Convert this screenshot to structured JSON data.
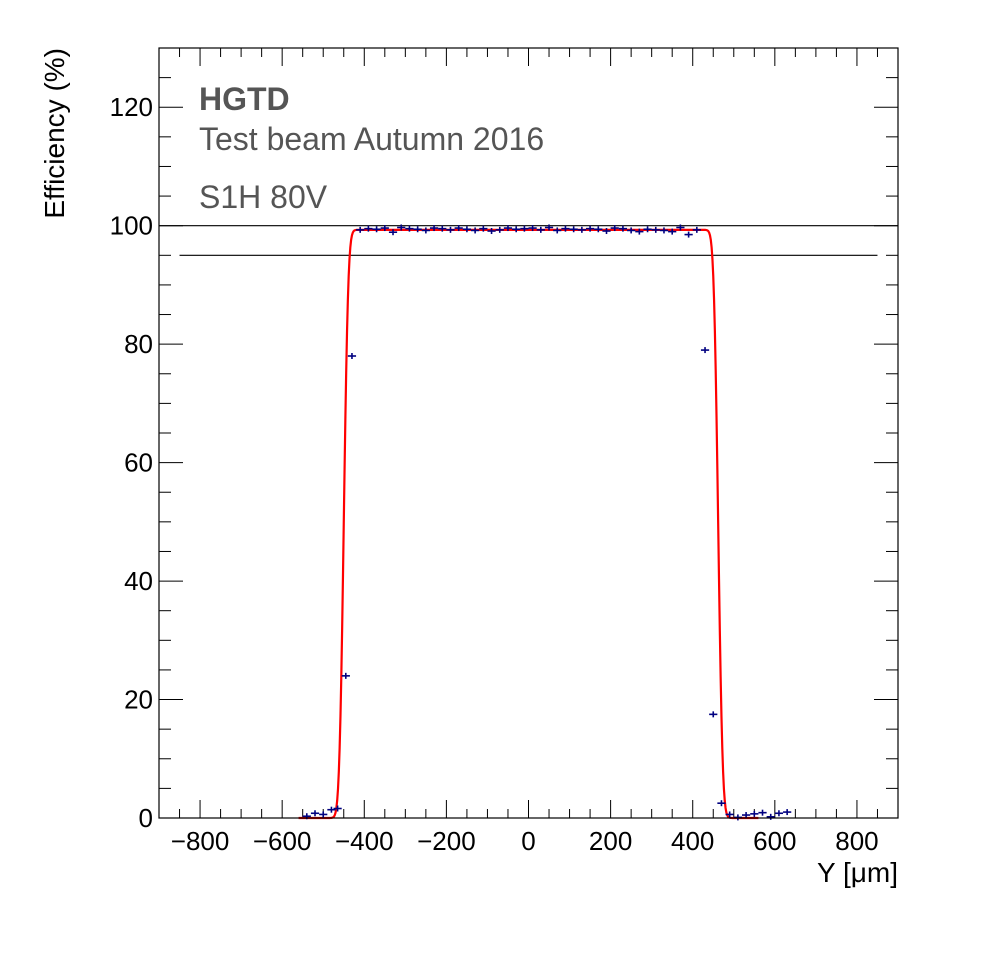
{
  "chart_data": {
    "type": "scatter",
    "title": "",
    "xlabel": "Y [μm]",
    "ylabel": "Efficiency (%)",
    "xlim": [
      -900,
      900
    ],
    "ylim": [
      0,
      130
    ],
    "x_ticks": [
      -800,
      -600,
      -400,
      -200,
      0,
      200,
      400,
      600,
      800
    ],
    "x_tick_labels": [
      "−800",
      "−600",
      "−400",
      "−200",
      "0",
      "200",
      "400",
      "600",
      "800"
    ],
    "y_ticks": [
      0,
      20,
      40,
      60,
      80,
      100,
      120
    ],
    "y_tick_labels": [
      "0",
      "20",
      "40",
      "60",
      "80",
      "100",
      "120"
    ],
    "annotations": [
      "HGTD",
      "Test beam Autumn 2016",
      "S1H 80V"
    ],
    "reference_lines": [
      {
        "y": 100,
        "x_from": -900,
        "x_to": 900
      },
      {
        "y": 95,
        "x_from": -850,
        "x_to": 850
      }
    ],
    "series": [
      {
        "name": "data",
        "color": "#000080",
        "x": [
          -540,
          -520,
          -500,
          -480,
          -465,
          -445,
          -430,
          -410,
          -390,
          -370,
          -350,
          -330,
          -310,
          -290,
          -270,
          -250,
          -230,
          -210,
          -190,
          -170,
          -150,
          -130,
          -110,
          -90,
          -70,
          -50,
          -30,
          -10,
          10,
          30,
          50,
          70,
          90,
          110,
          130,
          150,
          170,
          190,
          210,
          230,
          250,
          270,
          290,
          310,
          330,
          350,
          370,
          390,
          410,
          430,
          450,
          470,
          490,
          510,
          530,
          550,
          570,
          590,
          610,
          630
        ],
        "y": [
          0.3,
          0.8,
          0.6,
          1.4,
          1.6,
          24,
          78,
          99.3,
          99.5,
          99.4,
          99.6,
          98.9,
          99.7,
          99.5,
          99.4,
          99.2,
          99.6,
          99.5,
          99.3,
          99.6,
          99.4,
          99.2,
          99.5,
          99.1,
          99.3,
          99.6,
          99.4,
          99.5,
          99.6,
          99.3,
          99.7,
          99.2,
          99.5,
          99.4,
          99.3,
          99.5,
          99.4,
          99.1,
          99.6,
          99.5,
          99.2,
          99.0,
          99.4,
          99.3,
          99.2,
          99.0,
          99.7,
          98.5,
          99.3,
          79,
          17.5,
          2.5,
          0.6,
          0.1,
          0.5,
          0.7,
          0.9,
          0.2,
          0.8,
          1.0
        ],
        "x_err": 10
      },
      {
        "name": "fit",
        "color": "#ff0000",
        "model": "plateau with error-function edges",
        "plateau": 99.3,
        "left_edge": -450,
        "right_edge": 462,
        "edge_width": 12,
        "x_range": [
          -560,
          560
        ]
      }
    ]
  }
}
